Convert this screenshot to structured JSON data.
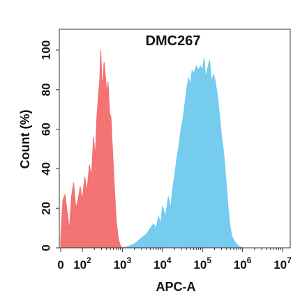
{
  "chart_data": {
    "type": "area",
    "title": "DMC267",
    "xlabel": "APC-A",
    "ylabel": "Count  (%)",
    "x_scale": "biexponential",
    "xlim": [
      0,
      10000000
    ],
    "ylim": [
      0,
      110
    ],
    "grid": false,
    "y_ticks": [
      {
        "value": 0,
        "label": "0"
      },
      {
        "value": 20,
        "label": "20"
      },
      {
        "value": 40,
        "label": "40"
      },
      {
        "value": 60,
        "label": "60"
      },
      {
        "value": 80,
        "label": "80"
      },
      {
        "value": 100,
        "label": "100"
      }
    ],
    "x_ticks": [
      {
        "value": 0,
        "base": "0",
        "exp": ""
      },
      {
        "value": 100,
        "base": "10",
        "exp": "2"
      },
      {
        "value": 1000,
        "base": "10",
        "exp": "3"
      },
      {
        "value": 10000,
        "base": "10",
        "exp": "4"
      },
      {
        "value": 100000,
        "base": "10",
        "exp": "5"
      },
      {
        "value": 1000000,
        "base": "10",
        "exp": "6"
      },
      {
        "value": 10000000,
        "base": "10",
        "exp": "7"
      }
    ],
    "series": [
      {
        "color": "#f36b6b",
        "points": [
          [
            0,
            5
          ],
          [
            10,
            24
          ],
          [
            20,
            27
          ],
          [
            30,
            18
          ],
          [
            40,
            9
          ],
          [
            50,
            26
          ],
          [
            60,
            33
          ],
          [
            70,
            20
          ],
          [
            80,
            24
          ],
          [
            90,
            31
          ],
          [
            100,
            24
          ],
          [
            115,
            36
          ],
          [
            130,
            28
          ],
          [
            150,
            42
          ],
          [
            170,
            36
          ],
          [
            190,
            56
          ],
          [
            210,
            46
          ],
          [
            230,
            66
          ],
          [
            250,
            76
          ],
          [
            270,
            84
          ],
          [
            290,
            100
          ],
          [
            310,
            82
          ],
          [
            330,
            86
          ],
          [
            350,
            94
          ],
          [
            380,
            86
          ],
          [
            410,
            78
          ],
          [
            440,
            84
          ],
          [
            480,
            68
          ],
          [
            520,
            66
          ],
          [
            560,
            52
          ],
          [
            620,
            34
          ],
          [
            700,
            14
          ],
          [
            800,
            4
          ],
          [
            900,
            1
          ],
          [
            1000,
            0
          ]
        ]
      },
      {
        "color": "#6ec9ee",
        "points": [
          [
            1000,
            0
          ],
          [
            1500,
            1
          ],
          [
            2000,
            2
          ],
          [
            3000,
            5
          ],
          [
            4000,
            7
          ],
          [
            5000,
            10
          ],
          [
            6000,
            12
          ],
          [
            7000,
            10
          ],
          [
            8000,
            16
          ],
          [
            9000,
            12
          ],
          [
            10000,
            21
          ],
          [
            12000,
            16
          ],
          [
            14000,
            26
          ],
          [
            16000,
            20
          ],
          [
            18000,
            30
          ],
          [
            20000,
            36
          ],
          [
            23000,
            46
          ],
          [
            26000,
            52
          ],
          [
            29000,
            60
          ],
          [
            32000,
            64
          ],
          [
            36000,
            72
          ],
          [
            40000,
            80
          ],
          [
            45000,
            86
          ],
          [
            50000,
            82
          ],
          [
            55000,
            90
          ],
          [
            60000,
            88
          ],
          [
            70000,
            92
          ],
          [
            80000,
            90
          ],
          [
            90000,
            92
          ],
          [
            100000,
            90
          ],
          [
            110000,
            96
          ],
          [
            120000,
            86
          ],
          [
            135000,
            91
          ],
          [
            150000,
            95
          ],
          [
            170000,
            84
          ],
          [
            190000,
            88
          ],
          [
            210000,
            84
          ],
          [
            240000,
            76
          ],
          [
            270000,
            66
          ],
          [
            300000,
            56
          ],
          [
            340000,
            48
          ],
          [
            380000,
            36
          ],
          [
            430000,
            22
          ],
          [
            480000,
            12
          ],
          [
            540000,
            6
          ],
          [
            600000,
            4
          ],
          [
            700000,
            2
          ],
          [
            800000,
            1
          ],
          [
            1000000,
            0
          ]
        ]
      }
    ]
  }
}
